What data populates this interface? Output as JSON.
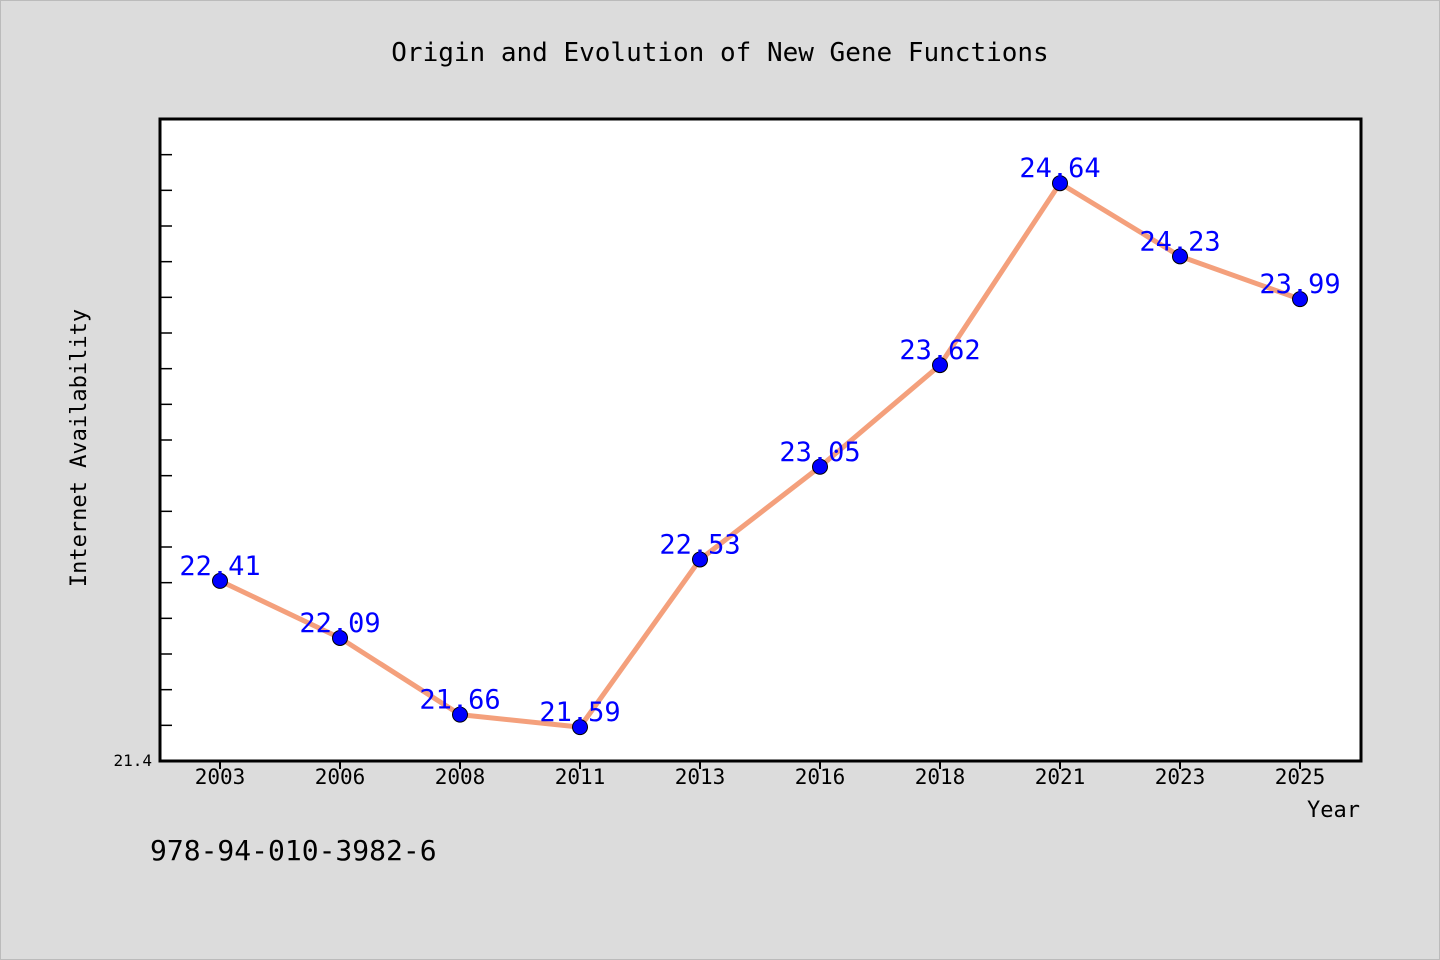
{
  "chart_data": {
    "type": "line",
    "title": "Origin and Evolution of New Gene Functions",
    "xlabel": "Year",
    "ylabel": "Internet Availability",
    "categories": [
      "2003",
      "2006",
      "2008",
      "2011",
      "2013",
      "2016",
      "2018",
      "2021",
      "2023",
      "2025"
    ],
    "series": [
      {
        "values": [
          22.41,
          22.09,
          21.66,
          21.59,
          22.53,
          23.05,
          23.62,
          24.64,
          24.23,
          23.99
        ]
      }
    ],
    "data_labels": [
      "22.41",
      "22.09",
      "21.66",
      "21.59",
      "22.53",
      "23.05",
      "23.62",
      "24.64",
      "24.23",
      "23.99"
    ],
    "ylim": [
      21.4,
      25.0
    ],
    "y_min_label": "21.4",
    "grid": false,
    "legend": "none",
    "colors": {
      "line": "#f4a07c",
      "marker": "#0000ff",
      "data_label": "#0000ff",
      "background": "#dcdcdc",
      "plot_background": "#ffffff"
    }
  },
  "footer": {
    "isbn": "978-94-010-3982-6"
  }
}
